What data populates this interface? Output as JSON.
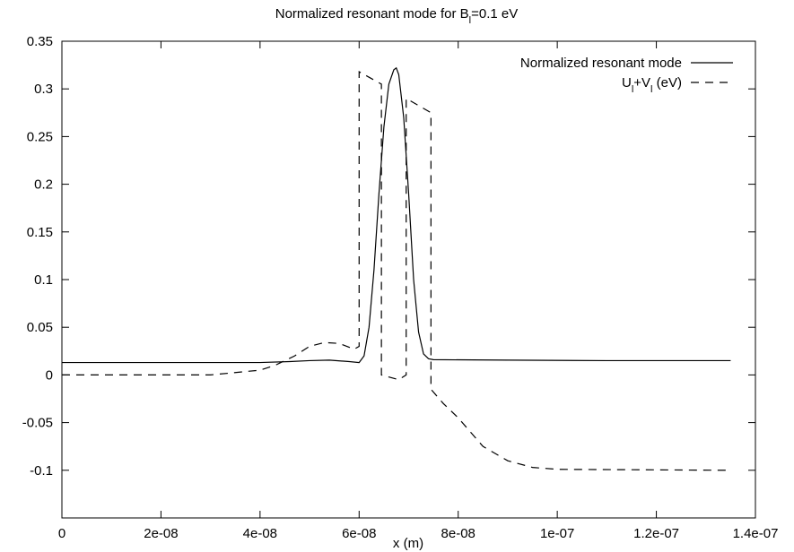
{
  "chart_data": {
    "type": "line",
    "title": [
      "Normalized resonant mode for B",
      "l",
      "=0.1 eV"
    ],
    "xlabel": "x (m)",
    "xlim": [
      0,
      1.4e-07
    ],
    "xticks": [
      0,
      {
        "value": 2e-08,
        "label": "2e-08"
      },
      {
        "value": 4e-08,
        "label": "4e-08"
      },
      {
        "value": 6e-08,
        "label": "6e-08"
      },
      {
        "value": 8e-08,
        "label": "8e-08"
      },
      {
        "value": 1e-07,
        "label": "1e-07"
      },
      {
        "value": 1.2e-07,
        "label": "1.2e-07"
      },
      {
        "value": 1.4e-07,
        "label": "1.4e-07"
      }
    ],
    "ylim": [
      -0.15,
      0.35
    ],
    "yticks": [
      -0.1,
      -0.05,
      0,
      0.05,
      0.1,
      0.15,
      0.2,
      0.25,
      0.3,
      0.35
    ],
    "legend": "top-right",
    "series": [
      {
        "name": [
          "Normalized resonant mode"
        ],
        "color": "#000000",
        "dash": "solid",
        "x": [
          0,
          2e-08,
          4e-08,
          4.6e-08,
          5e-08,
          5.4e-08,
          5.8e-08,
          6e-08,
          6.1e-08,
          6.2e-08,
          6.3e-08,
          6.4e-08,
          6.5e-08,
          6.6e-08,
          6.7e-08,
          6.75e-08,
          6.8e-08,
          6.9e-08,
          7e-08,
          7.1e-08,
          7.2e-08,
          7.3e-08,
          7.4e-08,
          7.5e-08,
          9e-08,
          1.1e-07,
          1.35e-07
        ],
        "values": [
          0.013,
          0.013,
          0.013,
          0.014,
          0.015,
          0.0155,
          0.014,
          0.013,
          0.02,
          0.05,
          0.11,
          0.19,
          0.26,
          0.305,
          0.32,
          0.322,
          0.315,
          0.27,
          0.19,
          0.1,
          0.045,
          0.022,
          0.017,
          0.016,
          0.0155,
          0.015,
          0.015
        ]
      },
      {
        "name": [
          "U",
          "l",
          "+V",
          "l",
          " (eV)"
        ],
        "color": "#000000",
        "dash": "dashed",
        "x": [
          0,
          3e-08,
          4e-08,
          4.3e-08,
          4.7e-08,
          5e-08,
          5.3e-08,
          5.6e-08,
          5.9e-08,
          6e-08,
          6e-08,
          6.45e-08,
          6.45e-08,
          6.8e-08,
          6.95e-08,
          6.95e-08,
          7.45e-08,
          7.45e-08,
          7.7e-08,
          8e-08,
          8.5e-08,
          9e-08,
          9.5e-08,
          1e-07,
          1.35e-07
        ],
        "values": [
          0,
          0,
          0.005,
          0.01,
          0.02,
          0.03,
          0.034,
          0.033,
          0.027,
          0.03,
          0.318,
          0.305,
          0.0,
          -0.005,
          0.0,
          0.29,
          0.275,
          -0.015,
          -0.03,
          -0.045,
          -0.075,
          -0.09,
          -0.097,
          -0.099,
          -0.1
        ]
      }
    ]
  }
}
